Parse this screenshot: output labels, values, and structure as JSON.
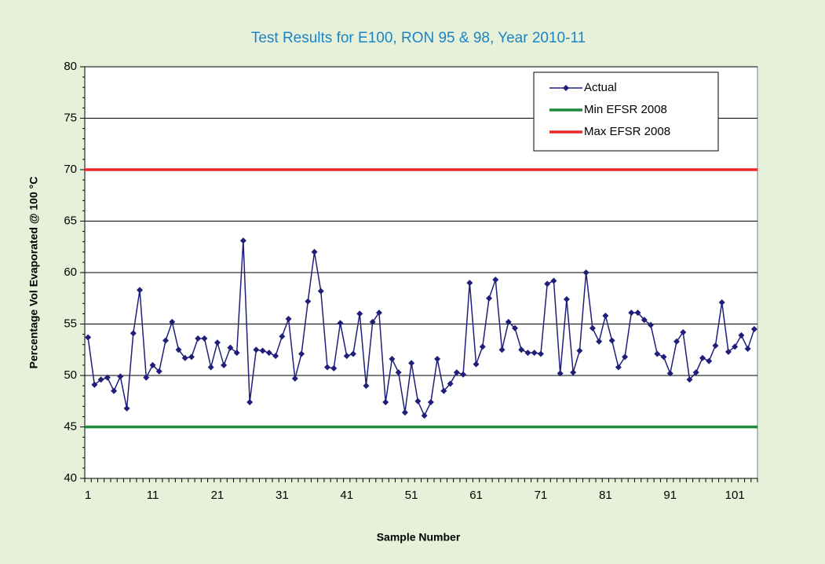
{
  "chart_data": {
    "type": "line",
    "title": "Test Results for E100, RON 95 & 98, Year 2010-11",
    "x_label": "Sample Number",
    "y_label": "Percentage Vol Evaporated @ 100  °C",
    "categories": [
      1,
      null,
      null,
      null,
      null,
      null,
      null,
      null,
      null,
      null,
      11,
      null,
      null,
      null,
      null,
      null,
      null,
      null,
      null,
      null,
      21,
      null,
      null,
      null,
      null,
      null,
      null,
      null,
      null,
      null,
      31,
      null,
      null,
      null,
      null,
      null,
      null,
      null,
      null,
      null,
      41,
      null,
      null,
      null,
      null,
      null,
      null,
      null,
      null,
      null,
      51,
      null,
      null,
      null,
      null,
      null,
      null,
      null,
      null,
      null,
      61,
      null,
      null,
      null,
      null,
      null,
      null,
      null,
      null,
      null,
      71,
      null,
      null,
      null,
      null,
      null,
      null,
      null,
      null,
      null,
      81,
      null,
      null,
      null,
      null,
      null,
      null,
      null,
      null,
      null,
      91,
      null,
      null,
      null,
      null,
      null,
      null,
      null,
      null,
      null,
      101,
      null,
      null,
      null
    ],
    "series": [
      {
        "name": "Actual",
        "color": "#1f1f7a",
        "values": [
          53.7,
          49.1,
          49.6,
          49.8,
          48.5,
          49.9,
          46.8,
          54.1,
          58.3,
          49.8,
          51.0,
          50.4,
          53.4,
          55.2,
          52.5,
          51.7,
          51.8,
          53.6,
          53.6,
          50.8,
          53.2,
          51.0,
          52.7,
          52.2,
          63.1,
          47.4,
          52.5,
          52.4,
          52.2,
          51.9,
          53.8,
          55.5,
          49.7,
          52.1,
          57.2,
          62.0,
          58.2,
          50.8,
          50.7,
          55.1,
          51.9,
          52.1,
          56.0,
          49.0,
          55.2,
          56.1,
          47.4,
          51.6,
          50.3,
          46.4,
          51.2,
          47.5,
          46.1,
          47.4,
          51.6,
          48.5,
          49.2,
          50.3,
          50.1,
          59.0,
          51.1,
          52.8,
          57.5,
          59.3,
          52.5,
          55.2,
          54.6,
          52.5,
          52.2,
          52.2,
          52.1,
          58.9,
          59.2,
          50.2,
          57.4,
          50.3,
          52.4,
          60.0,
          54.6,
          53.3,
          55.8,
          53.4,
          50.8,
          51.8,
          56.1,
          56.1,
          55.4,
          54.9,
          52.1,
          51.8,
          50.2,
          53.3,
          54.2,
          49.6,
          50.3,
          51.7,
          51.4,
          52.9,
          57.1,
          52.3,
          52.8,
          53.9,
          52.6,
          54.5
        ]
      }
    ],
    "reference_lines": [
      {
        "name": "Min EFSR 2008",
        "color": "#1e8a3c",
        "value": 45
      },
      {
        "name": "Max EFSR 2008",
        "color": "#e8282b",
        "value": 70
      }
    ],
    "ylim": [
      40,
      80
    ],
    "yticks": [
      40,
      45,
      50,
      55,
      60,
      65,
      70,
      75,
      80
    ],
    "grid": true,
    "legend": "top-right"
  }
}
